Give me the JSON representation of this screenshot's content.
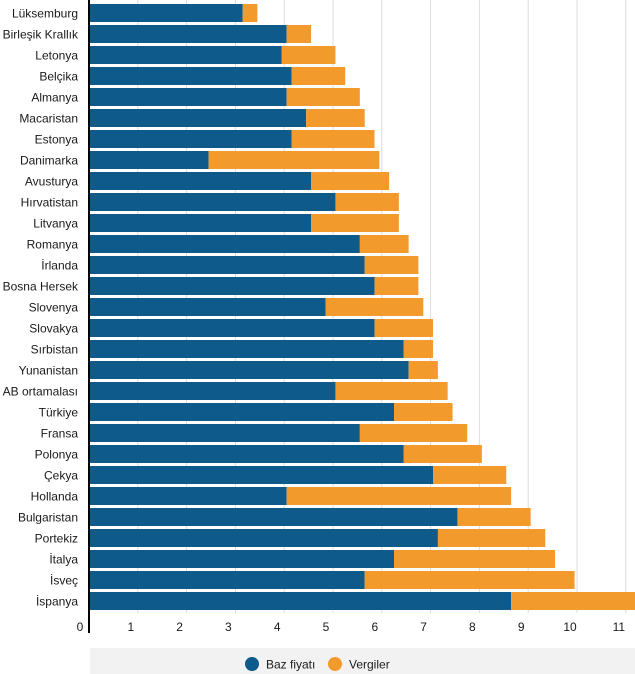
{
  "chart_data": {
    "type": "bar",
    "orientation": "horizontal",
    "stacked": true,
    "title": "",
    "xlabel": "",
    "ylabel": "",
    "xlim": [
      0,
      11.3
    ],
    "ticks": [
      "0",
      "1",
      "2",
      "3",
      "4",
      "5",
      "6",
      "7",
      "8",
      "9",
      "10",
      "11"
    ],
    "grid": true,
    "legend_position": "bottom",
    "categories": [
      "Lüksemburg",
      "Birleşik Krallık",
      "Letonya",
      "Belçika",
      "Almanya",
      "Macaristan",
      "Estonya",
      "Danimarka",
      "Avusturya",
      "Hırvatistan",
      "Litvanya",
      "Romanya",
      "İrlanda",
      "Bosna Hersek",
      "Slovenya",
      "Slovakya",
      "Sırbistan",
      "Yunanistan",
      "AB ortamalası",
      "Türkiye",
      "Fransa",
      "Polonya",
      "Çekya",
      "Hollanda",
      "Bulgaristan",
      "Portekiz",
      "İtalya",
      "İsveç",
      "İspanya"
    ],
    "series": [
      {
        "name": "Baz fiyatı",
        "color": "#0e5a8a",
        "values": [
          3.15,
          4.05,
          3.95,
          4.15,
          4.05,
          4.45,
          4.15,
          2.45,
          4.55,
          5.05,
          4.55,
          5.55,
          5.65,
          5.85,
          4.85,
          5.85,
          6.45,
          6.55,
          5.05,
          6.25,
          5.55,
          6.45,
          7.05,
          4.05,
          7.55,
          7.15,
          6.25,
          5.65,
          8.65
        ]
      },
      {
        "name": "Vergiler",
        "color": "#f39a2d",
        "values": [
          0.3,
          0.5,
          1.1,
          1.1,
          1.5,
          1.2,
          1.7,
          3.5,
          1.6,
          1.3,
          1.8,
          1.0,
          1.1,
          0.9,
          2.0,
          1.2,
          0.6,
          0.6,
          2.3,
          1.2,
          2.2,
          1.6,
          1.5,
          4.6,
          1.5,
          2.2,
          3.3,
          4.3,
          2.75
        ]
      }
    ]
  }
}
